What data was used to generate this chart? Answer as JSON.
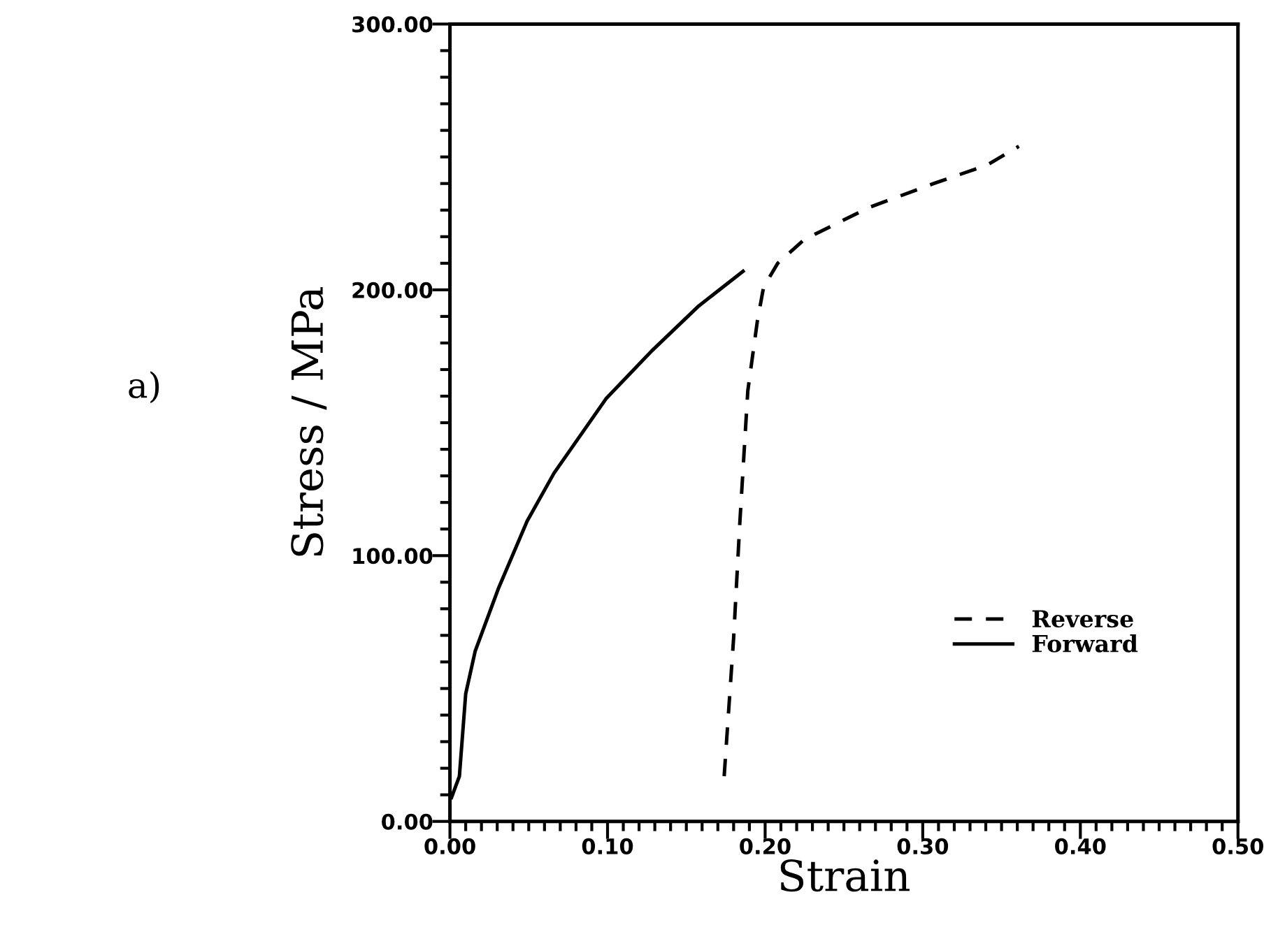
{
  "chart_data": {
    "type": "line",
    "xlabel": "Strain",
    "ylabel": "Stress / MPa",
    "annotations": [
      "a)"
    ],
    "series": [
      {
        "name": "Reverse",
        "color": "#000000",
        "line_style": "dashed",
        "x": [
          0.174,
          0.18,
          0.184,
          0.189,
          0.195,
          0.199,
          0.208,
          0.225,
          0.266,
          0.307,
          0.341,
          0.361
        ],
        "values": [
          17,
          69,
          113,
          162,
          188,
          201,
          210,
          219,
          231,
          240,
          247,
          254
        ]
      },
      {
        "name": "Forward",
        "color": "#000000",
        "line_style": "solid",
        "x": [
          0.001,
          0.006,
          0.01,
          0.016,
          0.031,
          0.049,
          0.066,
          0.099,
          0.128,
          0.158,
          0.186
        ],
        "values": [
          9,
          17,
          48,
          64,
          88,
          113,
          131,
          159,
          177,
          194,
          207
        ]
      }
    ],
    "xlim": [
      0,
      0.5
    ],
    "ylim": [
      0,
      300
    ],
    "xticks": [
      {
        "value": 0,
        "label": "0.00"
      },
      {
        "value": 0.01,
        "label": null
      },
      {
        "value": 0.02,
        "label": null
      },
      {
        "value": 0.03,
        "label": null
      },
      {
        "value": 0.04,
        "label": null
      },
      {
        "value": 0.05,
        "label": null
      },
      {
        "value": 0.06,
        "label": null
      },
      {
        "value": 0.07,
        "label": null
      },
      {
        "value": 0.08,
        "label": null
      },
      {
        "value": 0.09,
        "label": null
      },
      {
        "value": 0.1,
        "label": "0.10"
      },
      {
        "value": 0.11,
        "label": null
      },
      {
        "value": 0.12,
        "label": null
      },
      {
        "value": 0.13,
        "label": null
      },
      {
        "value": 0.14,
        "label": null
      },
      {
        "value": 0.15,
        "label": null
      },
      {
        "value": 0.16,
        "label": null
      },
      {
        "value": 0.17,
        "label": null
      },
      {
        "value": 0.18,
        "label": null
      },
      {
        "value": 0.19,
        "label": null
      },
      {
        "value": 0.2,
        "label": "0.20"
      },
      {
        "value": 0.21,
        "label": null
      },
      {
        "value": 0.22,
        "label": null
      },
      {
        "value": 0.23,
        "label": null
      },
      {
        "value": 0.24,
        "label": null
      },
      {
        "value": 0.25,
        "label": null
      },
      {
        "value": 0.26,
        "label": null
      },
      {
        "value": 0.27,
        "label": null
      },
      {
        "value": 0.28,
        "label": null
      },
      {
        "value": 0.29,
        "label": null
      },
      {
        "value": 0.3,
        "label": "0.30"
      },
      {
        "value": 0.31,
        "label": null
      },
      {
        "value": 0.32,
        "label": null
      },
      {
        "value": 0.33,
        "label": null
      },
      {
        "value": 0.34,
        "label": null
      },
      {
        "value": 0.35,
        "label": null
      },
      {
        "value": 0.36,
        "label": null
      },
      {
        "value": 0.37,
        "label": null
      },
      {
        "value": 0.38,
        "label": null
      },
      {
        "value": 0.39,
        "label": null
      },
      {
        "value": 0.4,
        "label": "0.40"
      },
      {
        "value": 0.41,
        "label": null
      },
      {
        "value": 0.42,
        "label": null
      },
      {
        "value": 0.43,
        "label": null
      },
      {
        "value": 0.44,
        "label": null
      },
      {
        "value": 0.45,
        "label": null
      },
      {
        "value": 0.46,
        "label": null
      },
      {
        "value": 0.47,
        "label": null
      },
      {
        "value": 0.48,
        "label": null
      },
      {
        "value": 0.49,
        "label": null
      },
      {
        "value": 0.5,
        "label": "0.50"
      }
    ],
    "yticks": [
      {
        "value": 0,
        "label": "0.00"
      },
      {
        "value": 10,
        "label": null
      },
      {
        "value": 20,
        "label": null
      },
      {
        "value": 30,
        "label": null
      },
      {
        "value": 40,
        "label": null
      },
      {
        "value": 50,
        "label": null
      },
      {
        "value": 60,
        "label": null
      },
      {
        "value": 70,
        "label": null
      },
      {
        "value": 80,
        "label": null
      },
      {
        "value": 90,
        "label": null
      },
      {
        "value": 100,
        "label": "100.00"
      },
      {
        "value": 110,
        "label": null
      },
      {
        "value": 120,
        "label": null
      },
      {
        "value": 130,
        "label": null
      },
      {
        "value": 140,
        "label": null
      },
      {
        "value": 150,
        "label": null
      },
      {
        "value": 160,
        "label": null
      },
      {
        "value": 170,
        "label": null
      },
      {
        "value": 180,
        "label": null
      },
      {
        "value": 190,
        "label": null
      },
      {
        "value": 200,
        "label": "200.00"
      },
      {
        "value": 210,
        "label": null
      },
      {
        "value": 220,
        "label": null
      },
      {
        "value": 230,
        "label": null
      },
      {
        "value": 240,
        "label": null
      },
      {
        "value": 250,
        "label": null
      },
      {
        "value": 260,
        "label": null
      },
      {
        "value": 270,
        "label": null
      },
      {
        "value": 280,
        "label": null
      },
      {
        "value": 290,
        "label": null
      },
      {
        "value": 300,
        "label": "300.00"
      }
    ],
    "grid": false,
    "legend": "bottom right",
    "marker": "none"
  }
}
